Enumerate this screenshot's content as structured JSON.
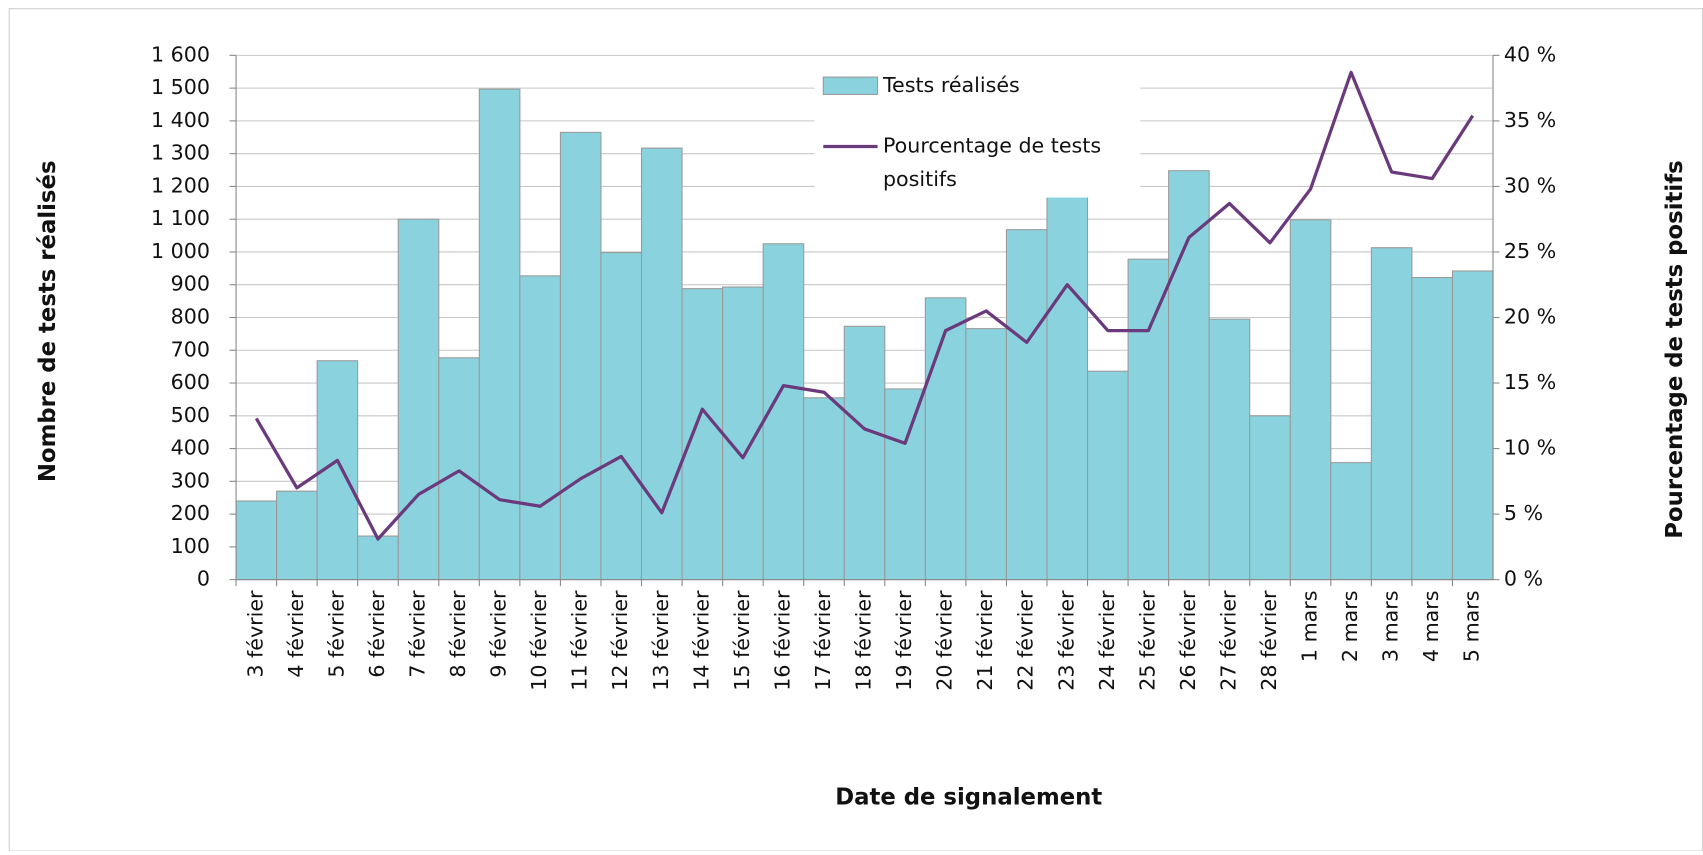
{
  "chart_data": {
    "type": "bar-line",
    "x_label": "Date de signalement",
    "y_label": "Nombre de tests réalisés",
    "y2_label": "Pourcentage de tests positifs",
    "categories": [
      "3 février",
      "4 février",
      "5 février",
      "6 février",
      "7 février",
      "8 février",
      "9 février",
      "10 février",
      "11 février",
      "12 février",
      "13 février",
      "14 février",
      "15 février",
      "16 février",
      "17 février",
      "18 février",
      "19 février",
      "20 février",
      "21 février",
      "22 février",
      "23 février",
      "24 février",
      "25 février",
      "26 février",
      "27 février",
      "28 février",
      "1 mars",
      "2 mars",
      "3 mars",
      "4 mars",
      "5 mars"
    ],
    "series": [
      {
        "name": "Tests réalisés",
        "type": "bar",
        "color": "#8ad3de",
        "values": [
          240,
          270,
          668,
          133,
          1100,
          677,
          1497,
          927,
          1365,
          998,
          1317,
          888,
          893,
          1025,
          555,
          773,
          582,
          860,
          766,
          1068,
          1173,
          636,
          978,
          1248,
          795,
          500,
          1098,
          357,
          1013,
          922,
          942
        ]
      },
      {
        "name": "Pourcentage de tests positifs",
        "type": "line",
        "axis": "y2",
        "color": "#6b3a7d",
        "values": [
          12.3,
          7.0,
          9.1,
          3.1,
          6.5,
          8.3,
          6.1,
          5.6,
          7.7,
          9.4,
          5.1,
          13.0,
          9.3,
          14.8,
          14.3,
          11.5,
          10.4,
          19.0,
          20.5,
          18.1,
          22.5,
          19.0,
          19.0,
          26.1,
          28.7,
          25.7,
          29.8,
          38.7,
          31.1,
          30.6,
          35.4
        ]
      }
    ],
    "ylim": [
      0,
      1600
    ],
    "yticks": [
      0,
      100,
      200,
      300,
      400,
      500,
      600,
      700,
      800,
      900,
      {
        "value": 1000,
        "label": "1 000"
      },
      {
        "value": 1100,
        "label": "1 100"
      },
      {
        "value": 1200,
        "label": "1 200"
      },
      {
        "value": 1300,
        "label": "1 300"
      },
      {
        "value": 1400,
        "label": "1 400"
      },
      {
        "value": 1500,
        "label": "1 500"
      },
      {
        "value": 1600,
        "label": "1 600"
      }
    ],
    "y2lim": [
      0,
      40
    ],
    "y2ticks": [
      {
        "value": 0,
        "label": "0 %"
      },
      {
        "value": 5,
        "label": "5 %"
      },
      {
        "value": 10,
        "label": "10 %"
      },
      {
        "value": 15,
        "label": "15 %"
      },
      {
        "value": 20,
        "label": "20 %"
      },
      {
        "value": 25,
        "label": "25 %"
      },
      {
        "value": 30,
        "label": "30 %"
      },
      {
        "value": 35,
        "label": "35 %"
      },
      {
        "value": 40,
        "label": "40 %"
      }
    ],
    "grid": true
  }
}
